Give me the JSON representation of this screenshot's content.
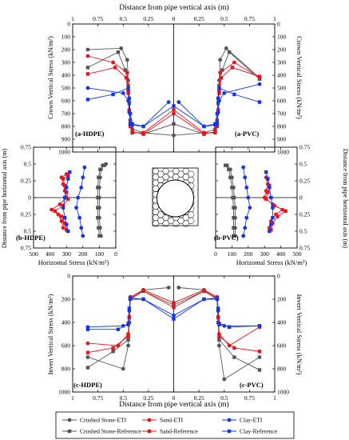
{
  "figure": {
    "top_xlabel": "Distance from pipe vertical axis (m)",
    "bottom_xlabel": "Distance from pipe vertical axis (m)",
    "crown_ylabel_left": "Crown Vertical Stress (kN/m²)",
    "crown_ylabel_right": "Crown Vertical Stress (kN/m²)",
    "mid_ylabel_left": "Distance from pipe horizontal axis (m)",
    "mid_ylabel_right": "Distance from pipe horizontal axis (m)",
    "mid_xlabel": "Horizontal Stress (kN/m²)",
    "invert_ylabel_left": "Invert Vertical Stress (kN/m²)",
    "invert_ylabel_right": "Invert Vertical Stress (kN/m²)"
  },
  "legend": [
    {
      "label": "Crushed Stone-ETI",
      "color": "#555555",
      "marker": "circle"
    },
    {
      "label": "Sand-ETI",
      "color": "#e8141c",
      "marker": "circle"
    },
    {
      "label": "Clay-ETI",
      "color": "#1436e8",
      "marker": "circle"
    },
    {
      "label": "Crushed Stone-Reference",
      "color": "#555555",
      "marker": "square"
    },
    {
      "label": "Sand-Reference",
      "color": "#e8141c",
      "marker": "square"
    },
    {
      "label": "Clay-Reference",
      "color": "#1436e8",
      "marker": "square"
    }
  ],
  "chart_data": [
    {
      "type": "line",
      "panel": "crown",
      "labels": {
        "left": "(a-HDPE)",
        "right": "(a-PVC)"
      },
      "xlim": [
        -1.0,
        1.0
      ],
      "ylim": [
        1000,
        0
      ],
      "x_ticks": [
        "1",
        "0.75",
        "0.5",
        "0.25",
        "0",
        "0.25",
        "0.5",
        "0.75",
        "1"
      ],
      "y_ticks": [
        "0",
        "100",
        "200",
        "300",
        "400",
        "500",
        "600",
        "700",
        "800",
        "900",
        "1000"
      ],
      "series": [
        {
          "name": "Crushed Stone-ETI",
          "color": "#555555",
          "marker": "circle",
          "x": [
            -0.85,
            -0.52,
            -0.46,
            -0.45,
            -0.44,
            -0.43,
            -0.41,
            -0.3,
            0.0,
            0.3,
            0.41,
            0.43,
            0.44,
            0.45,
            0.46,
            0.52,
            0.85
          ],
          "y": [
            800,
            810,
            720,
            560,
            390,
            250,
            180,
            150,
            130,
            150,
            180,
            250,
            390,
            560,
            720,
            810,
            580
          ]
        },
        {
          "name": "Crushed Stone-Reference",
          "color": "#555555",
          "marker": "square",
          "x": [
            -0.85,
            -0.55,
            -0.48,
            -0.45,
            -0.44,
            -0.43,
            -0.41,
            -0.3,
            0.0,
            0.3,
            0.41,
            0.43,
            0.44,
            0.45,
            0.48,
            0.55,
            0.85
          ],
          "y": [
            660,
            780,
            640,
            520,
            380,
            240,
            160,
            140,
            220,
            140,
            160,
            240,
            380,
            520,
            640,
            780,
            570
          ]
        },
        {
          "name": "Sand-ETI",
          "color": "#e8141c",
          "marker": "circle",
          "x": [
            -0.85,
            -0.6,
            -0.46,
            -0.45,
            -0.44,
            -0.43,
            -0.41,
            -0.3,
            0.0,
            0.3,
            0.41,
            0.43,
            0.44,
            0.45,
            0.46,
            0.6,
            0.85
          ],
          "y": [
            750,
            700,
            620,
            480,
            330,
            210,
            160,
            140,
            300,
            140,
            160,
            210,
            330,
            480,
            620,
            700,
            580
          ]
        },
        {
          "name": "Sand-Reference",
          "color": "#e8141c",
          "marker": "square",
          "x": [
            -0.85,
            -0.58,
            -0.47,
            -0.45,
            -0.44,
            -0.43,
            -0.41,
            -0.3,
            0.0,
            0.3,
            0.41,
            0.43,
            0.44,
            0.45,
            0.47,
            0.58,
            0.85
          ],
          "y": [
            610,
            660,
            580,
            460,
            320,
            200,
            150,
            150,
            330,
            150,
            150,
            200,
            320,
            460,
            580,
            660,
            590
          ]
        },
        {
          "name": "Clay-ETI",
          "color": "#1436e8",
          "marker": "circle",
          "x": [
            -0.85,
            -0.5,
            -0.45,
            -0.44,
            -0.43,
            -0.41,
            -0.3,
            -0.05,
            0.05,
            0.3,
            0.41,
            0.43,
            0.44,
            0.45,
            0.5,
            0.85
          ],
          "y": [
            500,
            460,
            400,
            310,
            220,
            210,
            200,
            390,
            390,
            200,
            210,
            220,
            310,
            400,
            460,
            530
          ]
        },
        {
          "name": "Clay-Reference",
          "color": "#1436e8",
          "marker": "square",
          "x": [
            -0.85,
            -0.6,
            -0.45,
            -0.44,
            -0.43,
            -0.41,
            -0.3,
            0.0,
            0.3,
            0.41,
            0.43,
            0.44,
            0.45,
            0.6,
            0.85
          ],
          "y": [
            410,
            450,
            500,
            420,
            300,
            220,
            200,
            360,
            200,
            220,
            300,
            420,
            500,
            450,
            390
          ]
        }
      ]
    },
    {
      "type": "line",
      "panel": "horizontal-HDPE",
      "label": "(b-HDPE)",
      "xlim": [
        500,
        0
      ],
      "ylim": [
        -0.75,
        0.75
      ],
      "x_ticks": [
        "500",
        "400",
        "300",
        "200",
        "100",
        "0"
      ],
      "y_ticks": [
        "0.75",
        "0.5",
        "0.25",
        "0",
        "0.25",
        "0.5",
        "0.75"
      ],
      "series": [
        {
          "name": "Crushed Stone-ETI",
          "color": "#555555",
          "marker": "circle",
          "x": [
            90,
            95,
            100,
            100,
            100,
            100,
            95,
            90,
            80,
            60
          ],
          "y": [
            0.57,
            0.45,
            0.3,
            0.15,
            0.0,
            -0.15,
            -0.3,
            -0.42,
            -0.48,
            -0.5
          ]
        },
        {
          "name": "Crushed Stone-Reference",
          "color": "#555555",
          "marker": "square",
          "x": [
            100,
            105,
            110,
            110,
            110,
            110,
            105,
            95,
            70
          ],
          "y": [
            0.57,
            0.45,
            0.3,
            0.15,
            0.0,
            -0.15,
            -0.3,
            -0.42,
            -0.48
          ]
        },
        {
          "name": "Sand-ETI",
          "color": "#e8141c",
          "marker": "circle",
          "x": [
            320,
            330,
            350,
            390,
            340,
            300,
            310,
            320,
            330,
            300
          ],
          "y": [
            0.45,
            0.35,
            0.25,
            0.18,
            0.1,
            0.0,
            -0.1,
            -0.2,
            -0.3,
            -0.35
          ]
        },
        {
          "name": "Sand-Reference",
          "color": "#e8141c",
          "marker": "square",
          "x": [
            300,
            310,
            330,
            370,
            320,
            290,
            300,
            310,
            320,
            290
          ],
          "y": [
            0.48,
            0.38,
            0.28,
            0.2,
            0.12,
            0.02,
            -0.08,
            -0.18,
            -0.28,
            -0.33
          ]
        },
        {
          "name": "Clay-ETI",
          "color": "#1436e8",
          "marker": "circle",
          "x": [
            200,
            210,
            220,
            240,
            230,
            210,
            200,
            190
          ],
          "y": [
            0.57,
            0.45,
            0.3,
            0.15,
            0.0,
            -0.15,
            -0.3,
            -0.45
          ]
        },
        {
          "name": "Clay-Reference",
          "color": "#1436e8",
          "marker": "square",
          "x": [
            290,
            300,
            310,
            320,
            310,
            300,
            290,
            280
          ],
          "y": [
            0.5,
            0.4,
            0.3,
            0.15,
            0.0,
            -0.15,
            -0.28,
            -0.38
          ]
        }
      ]
    },
    {
      "type": "line",
      "panel": "horizontal-PVC",
      "label": "(b-PVC)",
      "xlim": [
        0,
        500
      ],
      "ylim": [
        -0.75,
        0.75
      ],
      "x_ticks": [
        "0",
        "100",
        "200",
        "300",
        "400",
        "500"
      ],
      "y_ticks": [
        "0.75",
        "0.5",
        "0.25",
        "0",
        "0.25",
        "0.5",
        "0.75"
      ],
      "series": [
        {
          "name": "Crushed Stone-ETI",
          "color": "#555555",
          "marker": "circle",
          "x": [
            120,
            120,
            120,
            120,
            115,
            110,
            100,
            90,
            70
          ],
          "y": [
            0.57,
            0.45,
            0.3,
            0.15,
            0.0,
            -0.15,
            -0.3,
            -0.42,
            -0.48
          ]
        },
        {
          "name": "Crushed Stone-Reference",
          "color": "#555555",
          "marker": "square",
          "x": [
            110,
            110,
            110,
            110,
            105,
            100,
            90,
            80,
            60
          ],
          "y": [
            0.57,
            0.45,
            0.3,
            0.15,
            0.0,
            -0.15,
            -0.3,
            -0.42,
            -0.48
          ]
        },
        {
          "name": "Sand-ETI",
          "color": "#e8141c",
          "marker": "circle",
          "x": [
            330,
            340,
            370,
            410,
            350,
            300,
            310,
            320,
            310
          ],
          "y": [
            0.45,
            0.35,
            0.25,
            0.18,
            0.1,
            0.0,
            -0.1,
            -0.2,
            -0.3
          ]
        },
        {
          "name": "Sand-Reference",
          "color": "#e8141c",
          "marker": "square",
          "x": [
            340,
            350,
            380,
            430,
            360,
            310,
            320,
            330,
            320
          ],
          "y": [
            0.48,
            0.38,
            0.28,
            0.2,
            0.12,
            0.02,
            -0.08,
            -0.18,
            -0.28
          ]
        },
        {
          "name": "Clay-ETI",
          "color": "#1436e8",
          "marker": "circle",
          "x": [
            170,
            180,
            190,
            210,
            200,
            190,
            180,
            170
          ],
          "y": [
            0.57,
            0.45,
            0.3,
            0.15,
            0.0,
            -0.15,
            -0.3,
            -0.45
          ]
        },
        {
          "name": "Clay-Reference",
          "color": "#1436e8",
          "marker": "square",
          "x": [
            330,
            340,
            350,
            350,
            340,
            330,
            320,
            310
          ],
          "y": [
            0.5,
            0.4,
            0.3,
            0.15,
            0.0,
            -0.15,
            -0.28,
            -0.38
          ]
        }
      ]
    },
    {
      "type": "line",
      "panel": "invert",
      "labels": {
        "left": "(c-HDPE)",
        "right": "(c-PVC)"
      },
      "xlim": [
        -1.0,
        1.0
      ],
      "ylim": [
        0,
        1000
      ],
      "x_ticks": [
        "1",
        "0.75",
        "0.5",
        "0.25",
        "0",
        "0.25",
        "0.5",
        "0.75",
        "1"
      ],
      "y_ticks": [
        "0",
        "200",
        "400",
        "600",
        "800",
        "1000"
      ],
      "series": [
        {
          "name": "Crushed Stone-ETI",
          "color": "#555555",
          "marker": "circle",
          "x": [
            -0.85,
            -0.5,
            -0.45,
            -0.44,
            -0.43,
            -0.3,
            -0.05,
            0.05,
            0.3,
            0.43,
            0.44,
            0.45,
            0.5,
            0.85
          ],
          "y": [
            700,
            800,
            600,
            400,
            200,
            120,
            100,
            100,
            120,
            200,
            400,
            600,
            890,
            700
          ]
        },
        {
          "name": "Crushed Stone-Reference",
          "color": "#555555",
          "marker": "square",
          "x": [
            -0.85,
            -0.6,
            -0.45,
            -0.44,
            -0.43,
            -0.3,
            0.0,
            0.3,
            0.43,
            0.44,
            0.45,
            0.6,
            0.85
          ],
          "y": [
            790,
            650,
            550,
            400,
            200,
            130,
            250,
            130,
            200,
            400,
            550,
            700,
            810
          ]
        },
        {
          "name": "Sand-ETI",
          "color": "#e8141c",
          "marker": "circle",
          "x": [
            -0.85,
            -0.55,
            -0.45,
            -0.44,
            -0.43,
            -0.3,
            0.0,
            0.3,
            0.43,
            0.44,
            0.45,
            0.55,
            0.85
          ],
          "y": [
            580,
            600,
            500,
            350,
            180,
            120,
            230,
            120,
            180,
            350,
            500,
            600,
            440
          ]
        },
        {
          "name": "Sand-Reference",
          "color": "#e8141c",
          "marker": "square",
          "x": [
            -0.85,
            -0.6,
            -0.45,
            -0.44,
            -0.43,
            -0.3,
            0.0,
            0.3,
            0.43,
            0.44,
            0.45,
            0.6,
            0.85
          ],
          "y": [
            660,
            620,
            520,
            360,
            190,
            130,
            270,
            130,
            190,
            360,
            520,
            620,
            650
          ]
        },
        {
          "name": "Clay-ETI",
          "color": "#1436e8",
          "marker": "circle",
          "x": [
            -0.85,
            -0.5,
            -0.45,
            -0.44,
            -0.43,
            -0.3,
            0.0,
            0.3,
            0.43,
            0.44,
            0.45,
            0.5,
            0.85
          ],
          "y": [
            440,
            430,
            420,
            300,
            200,
            200,
            340,
            200,
            200,
            300,
            420,
            430,
            430
          ]
        },
        {
          "name": "Clay-Reference",
          "color": "#1436e8",
          "marker": "square",
          "x": [
            -0.85,
            -0.55,
            -0.45,
            -0.44,
            -0.43,
            -0.3,
            0.0,
            0.3,
            0.43,
            0.44,
            0.45,
            0.55,
            0.85
          ],
          "y": [
            460,
            460,
            410,
            280,
            190,
            200,
            370,
            200,
            190,
            280,
            410,
            440,
            430
          ]
        }
      ]
    }
  ]
}
